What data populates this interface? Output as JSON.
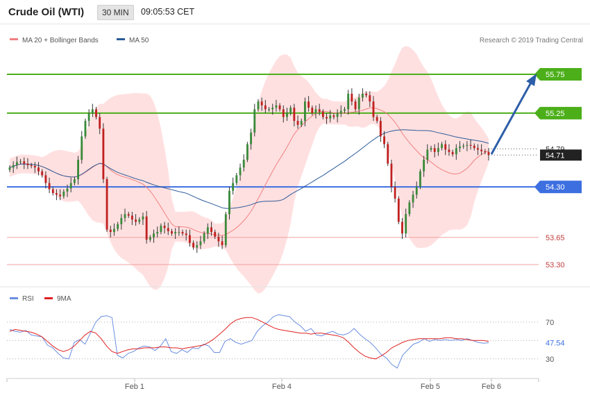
{
  "header": {
    "title": "Crude Oil (WTI)",
    "timeframe": "30 MIN",
    "time": "09:05:53 CET"
  },
  "legend": {
    "ma20_label": "MA 20 + Bollinger Bands",
    "ma50_label": "MA 50",
    "credit": "Research © 2019 Trading Central",
    "rsi_label": "RSI",
    "rsi_ma_label": "9MA"
  },
  "colors": {
    "ma20": "#f08080",
    "ma50": "#2b5a99",
    "band_fill": "#ffd6d6",
    "resistance": "#4caf1a",
    "pivot": "#3d6fe0",
    "support": "#f0a0a0",
    "candle_up": "#3a8a3a",
    "candle_down": "#c02020",
    "arrow": "#2d5ea8",
    "rsi": "#6a8ee0",
    "rsi_ma": "#e02020",
    "current_price_bg": "#222222"
  },
  "chart_data": [
    {
      "type": "candlestick",
      "title": "Crude Oil (WTI)",
      "interval": "30 MIN",
      "ylim": [
        53.07,
        56.13
      ],
      "x_labels": [
        "Feb 1",
        "Feb 4",
        "Feb 5",
        "Feb 6"
      ],
      "levels": [
        {
          "value": 55.75,
          "label": "55.75",
          "kind": "resistance"
        },
        {
          "value": 55.25,
          "label": "55.25",
          "kind": "resistance"
        },
        {
          "value": 54.3,
          "label": "54.30",
          "kind": "pivot"
        },
        {
          "value": 53.65,
          "label": "53.65",
          "kind": "support"
        },
        {
          "value": 53.3,
          "label": "53.30",
          "kind": "support"
        }
      ],
      "price_tags": [
        {
          "value": 54.79,
          "label": "54.79"
        },
        {
          "value": 54.71,
          "label": "54.71",
          "current": true
        }
      ],
      "closes": [
        54.55,
        54.58,
        54.62,
        54.63,
        54.6,
        54.58,
        54.57,
        54.55,
        54.5,
        54.45,
        54.35,
        54.27,
        54.22,
        54.2,
        54.18,
        54.24,
        54.28,
        54.35,
        54.4,
        54.65,
        54.95,
        55.15,
        55.25,
        55.3,
        55.2,
        55.05,
        54.4,
        53.75,
        53.72,
        53.76,
        53.82,
        53.9,
        53.95,
        53.93,
        53.88,
        53.85,
        53.88,
        53.92,
        53.62,
        53.65,
        53.7,
        53.72,
        53.8,
        53.77,
        53.73,
        53.7,
        53.72,
        53.72,
        53.7,
        53.68,
        53.58,
        53.52,
        53.55,
        53.6,
        53.7,
        53.78,
        53.72,
        53.66,
        53.6,
        53.55,
        53.95,
        54.25,
        54.35,
        54.45,
        54.55,
        54.65,
        54.85,
        55.0,
        55.3,
        55.4,
        55.35,
        55.3,
        55.3,
        55.32,
        55.35,
        55.3,
        55.2,
        55.25,
        55.32,
        55.15,
        55.1,
        55.15,
        55.4,
        55.32,
        55.25,
        55.3,
        55.27,
        55.2,
        55.18,
        55.22,
        55.2,
        55.25,
        55.28,
        55.3,
        55.5,
        55.4,
        55.3,
        55.45,
        55.5,
        55.48,
        55.4,
        55.2,
        55.15,
        54.95,
        54.85,
        54.6,
        54.3,
        54.15,
        53.85,
        53.7,
        53.95,
        54.1,
        54.2,
        54.3,
        54.5,
        54.65,
        54.78,
        54.8,
        54.75,
        54.8,
        54.85,
        54.78,
        54.75,
        54.72,
        54.8,
        54.82,
        54.83,
        54.84,
        54.83,
        54.8,
        54.78,
        54.76,
        54.75,
        54.71
      ],
      "series": [
        {
          "name": "MA 20 + Bollinger Bands"
        },
        {
          "name": "MA 50"
        }
      ]
    },
    {
      "type": "line",
      "ylim": [
        14,
        88
      ],
      "y_ticks": [
        70,
        30
      ],
      "last_value": {
        "value": 47.54,
        "label": "47.54"
      },
      "series": [
        {
          "name": "RSI",
          "values": [
            62,
            60,
            59,
            61,
            56,
            55,
            54,
            45,
            42,
            36,
            31,
            30,
            48,
            51,
            46,
            58,
            70,
            76,
            77,
            75,
            34,
            31,
            36,
            38,
            42,
            44,
            43,
            39,
            44,
            52,
            38,
            36,
            40,
            37,
            42,
            41,
            46,
            44,
            37,
            37,
            49,
            52,
            48,
            46,
            48,
            50,
            60,
            66,
            70,
            76,
            78,
            77,
            76,
            70,
            66,
            60,
            63,
            56,
            55,
            58,
            60,
            57,
            56,
            58,
            63,
            57,
            52,
            48,
            42,
            35,
            31,
            24,
            20,
            34,
            40,
            46,
            48,
            52,
            49,
            51,
            50,
            51,
            50,
            51,
            50,
            52,
            50,
            48,
            47,
            47.54
          ]
        },
        {
          "name": "9MA",
          "values": [
            60,
            62,
            61,
            60,
            59,
            57,
            54,
            49,
            44,
            40,
            38,
            40,
            44,
            50,
            56,
            60,
            58,
            52,
            44,
            38,
            36,
            38,
            40,
            41,
            41,
            42,
            42,
            42,
            43,
            43,
            42,
            42,
            41,
            42,
            43,
            44,
            45,
            48,
            52,
            57,
            62,
            68,
            72,
            74,
            75,
            75,
            73,
            70,
            67,
            64,
            62,
            61,
            60,
            59,
            58,
            58,
            57,
            58,
            58,
            57,
            56,
            55,
            53,
            48,
            42,
            37,
            33,
            31,
            30,
            33,
            37,
            42,
            45,
            48,
            50,
            51,
            52,
            52,
            52,
            52,
            52,
            53,
            53,
            52,
            52,
            51,
            50,
            50,
            50,
            49
          ]
        }
      ]
    }
  ]
}
